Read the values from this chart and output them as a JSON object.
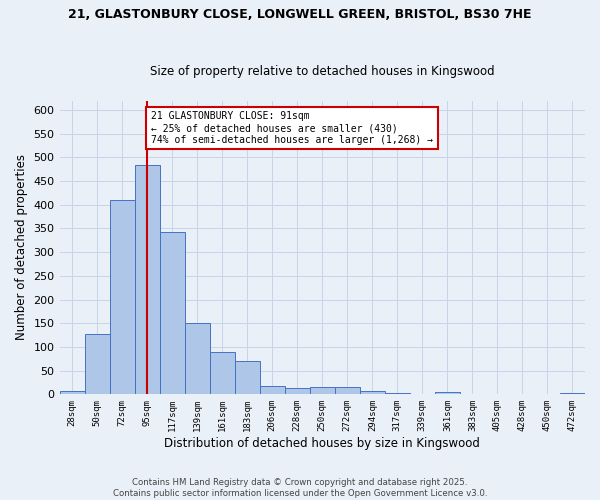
{
  "title_line1": "21, GLASTONBURY CLOSE, LONGWELL GREEN, BRISTOL, BS30 7HE",
  "title_line2": "Size of property relative to detached houses in Kingswood",
  "xlabel": "Distribution of detached houses by size in Kingswood",
  "ylabel": "Number of detached properties",
  "bar_labels": [
    "28sqm",
    "50sqm",
    "72sqm",
    "95sqm",
    "117sqm",
    "139sqm",
    "161sqm",
    "183sqm",
    "206sqm",
    "228sqm",
    "250sqm",
    "272sqm",
    "294sqm",
    "317sqm",
    "339sqm",
    "361sqm",
    "383sqm",
    "405sqm",
    "428sqm",
    "450sqm",
    "472sqm"
  ],
  "bar_values": [
    8,
    128,
    410,
    483,
    343,
    150,
    90,
    70,
    18,
    13,
    15,
    15,
    6,
    3,
    0,
    4,
    0,
    0,
    0,
    0,
    3
  ],
  "bar_color": "#aec6e8",
  "bar_edgecolor": "#4472c4",
  "grid_color": "#c8d4e8",
  "vline_x": 3.0,
  "vline_color": "#cc0000",
  "annotation_text": "21 GLASTONBURY CLOSE: 91sqm\n← 25% of detached houses are smaller (430)\n74% of semi-detached houses are larger (1,268) →",
  "annotation_box_edgecolor": "#cc0000",
  "annotation_box_facecolor": "#ffffff",
  "ylim": [
    0,
    620
  ],
  "yticks": [
    0,
    50,
    100,
    150,
    200,
    250,
    300,
    350,
    400,
    450,
    500,
    550,
    600
  ],
  "footer": "Contains HM Land Registry data © Crown copyright and database right 2025.\nContains public sector information licensed under the Open Government Licence v3.0.",
  "background_color": "#eaf0f8"
}
